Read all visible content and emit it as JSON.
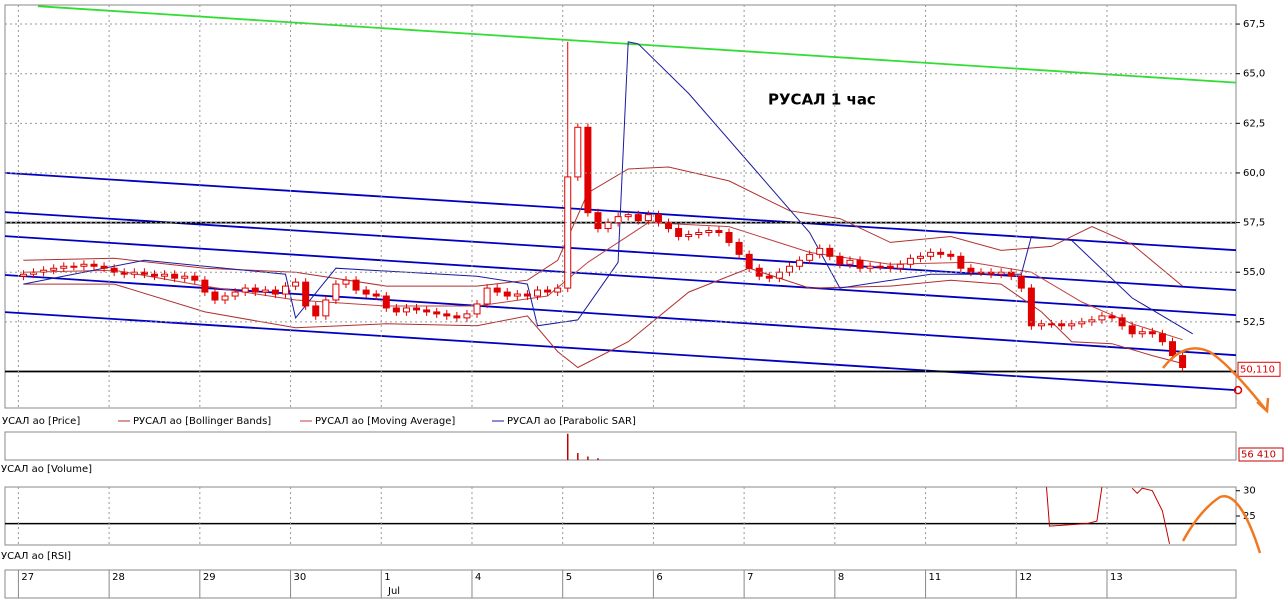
{
  "chart_data": {
    "type": "candlestick",
    "title": "РУСАЛ   1 час",
    "ylim": [
      48.16,
      68.46
    ],
    "yticks": [
      {
        "value": 67.5,
        "label": "67,5"
      },
      {
        "value": 65.0,
        "label": "65,0"
      },
      {
        "value": 62.5,
        "label": "62,5"
      },
      {
        "value": 60.0,
        "label": "60,0"
      },
      {
        "value": 57.5,
        "label": "57,5"
      },
      {
        "value": 55.0,
        "label": "55,0"
      },
      {
        "value": 52.5,
        "label": "52,5"
      }
    ],
    "xlim": [
      -1.83,
      120.3
    ],
    "grid": true,
    "candles": {
      "name": "УСАЛ ао [Price]",
      "up_color": "#ffffff",
      "down_color": "#e00000",
      "open": [
        54.8,
        54.9,
        55.0,
        55.1,
        55.2,
        55.3,
        55.3,
        55.4,
        55.3,
        55.2,
        55.0,
        54.9,
        55.0,
        54.9,
        54.8,
        54.9,
        54.7,
        54.8,
        54.6,
        54.0,
        53.6,
        53.8,
        54.0,
        54.2,
        54.0,
        54.1,
        53.9,
        54.3,
        54.5,
        53.3,
        52.8,
        53.6,
        54.4,
        54.6,
        54.1,
        53.9,
        53.8,
        53.2,
        53.0,
        53.2,
        53.1,
        53.0,
        52.9,
        52.8,
        52.7,
        52.9,
        53.4,
        54.2,
        54.0,
        53.8,
        53.9,
        53.8,
        54.1,
        54.0,
        54.2,
        59.8,
        62.3,
        58.0,
        57.2,
        57.5,
        57.8,
        57.9,
        57.6,
        57.9,
        57.5,
        57.2,
        56.8,
        56.9,
        57.0,
        57.1,
        57.0,
        56.5,
        55.9,
        55.2,
        54.8,
        54.7,
        55.0,
        55.3,
        55.6,
        55.9,
        56.2,
        55.8,
        55.4,
        55.6,
        55.2,
        55.3,
        55.3,
        55.2,
        55.4,
        55.7,
        55.8,
        56.0,
        55.9,
        55.8,
        55.2,
        55.0,
        55.0,
        54.9,
        55.0,
        54.8,
        54.2,
        52.3,
        52.4,
        52.4,
        52.3,
        52.4,
        52.5,
        52.6,
        52.8,
        52.7,
        52.3,
        51.9,
        52.0,
        51.9,
        51.5,
        50.8
      ],
      "high": [
        55.1,
        55.2,
        55.3,
        55.4,
        55.5,
        55.5,
        55.6,
        55.6,
        55.5,
        55.4,
        55.2,
        55.2,
        55.2,
        55.1,
        55.1,
        55.1,
        55.0,
        55.0,
        54.8,
        54.2,
        54.0,
        54.2,
        54.4,
        54.4,
        54.3,
        54.3,
        54.5,
        54.7,
        54.7,
        53.5,
        53.8,
        54.6,
        54.8,
        54.8,
        54.3,
        54.1,
        54.0,
        53.4,
        53.4,
        53.4,
        53.3,
        53.2,
        53.1,
        53.0,
        53.1,
        53.6,
        54.4,
        54.4,
        54.2,
        54.1,
        54.1,
        54.3,
        54.3,
        54.4,
        66.6,
        62.5,
        62.5,
        58.2,
        57.7,
        58.0,
        58.1,
        58.1,
        58.1,
        58.1,
        57.7,
        57.4,
        57.1,
        57.2,
        57.3,
        57.3,
        57.2,
        56.7,
        56.1,
        55.4,
        55.0,
        55.2,
        55.5,
        55.8,
        56.1,
        56.4,
        56.4,
        56.0,
        55.8,
        55.8,
        55.5,
        55.5,
        55.5,
        55.6,
        55.9,
        56.0,
        56.2,
        56.2,
        56.1,
        56.0,
        55.4,
        55.2,
        55.2,
        55.2,
        55.2,
        55.0,
        54.4,
        52.6,
        52.6,
        52.6,
        52.6,
        52.7,
        52.8,
        53.0,
        53.0,
        52.9,
        52.5,
        52.2,
        52.2,
        52.1,
        51.7,
        51.0
      ],
      "low": [
        54.6,
        54.7,
        54.8,
        54.9,
        55.0,
        55.1,
        55.1,
        55.1,
        55.0,
        54.8,
        54.7,
        54.7,
        54.7,
        54.6,
        54.6,
        54.5,
        54.5,
        54.4,
        53.8,
        53.4,
        53.4,
        53.6,
        53.8,
        53.8,
        53.8,
        53.7,
        53.7,
        54.1,
        53.1,
        52.6,
        52.6,
        53.4,
        54.2,
        53.9,
        53.7,
        53.6,
        53.0,
        52.8,
        52.8,
        52.9,
        52.8,
        52.7,
        52.6,
        52.5,
        52.5,
        52.7,
        53.2,
        53.8,
        53.6,
        53.6,
        53.6,
        53.6,
        53.8,
        53.8,
        54.0,
        59.6,
        57.8,
        57.0,
        57.0,
        57.3,
        57.6,
        57.4,
        57.4,
        57.3,
        57.0,
        56.6,
        56.6,
        56.7,
        56.8,
        56.8,
        56.3,
        55.7,
        55.0,
        54.6,
        54.5,
        54.5,
        54.8,
        55.1,
        55.4,
        55.7,
        55.6,
        55.2,
        55.2,
        55.0,
        55.0,
        55.1,
        55.0,
        55.0,
        55.2,
        55.5,
        55.6,
        55.7,
        55.6,
        55.0,
        54.8,
        54.8,
        54.7,
        54.7,
        54.6,
        54.0,
        52.1,
        52.1,
        52.2,
        52.1,
        52.1,
        52.2,
        52.3,
        52.4,
        52.5,
        52.1,
        51.7,
        51.7,
        51.7,
        51.3,
        50.6,
        50.0
      ],
      "close": [
        54.9,
        55.0,
        55.1,
        55.2,
        55.3,
        55.3,
        55.4,
        55.3,
        55.2,
        55.0,
        54.9,
        55.0,
        54.9,
        54.8,
        54.9,
        54.7,
        54.8,
        54.6,
        54.0,
        53.6,
        53.8,
        54.0,
        54.2,
        54.0,
        54.1,
        53.9,
        54.3,
        54.5,
        53.3,
        52.8,
        53.6,
        54.4,
        54.6,
        54.1,
        53.9,
        53.8,
        53.2,
        53.0,
        53.2,
        53.1,
        53.0,
        52.9,
        52.8,
        52.7,
        52.9,
        53.4,
        54.2,
        54.0,
        53.8,
        53.9,
        53.8,
        54.1,
        54.0,
        54.2,
        59.8,
        62.3,
        58.0,
        57.2,
        57.5,
        57.8,
        57.9,
        57.6,
        57.9,
        57.5,
        57.2,
        56.8,
        56.9,
        57.0,
        57.1,
        57.0,
        56.5,
        55.9,
        55.2,
        54.8,
        54.7,
        55.0,
        55.3,
        55.6,
        55.9,
        56.2,
        55.8,
        55.4,
        55.6,
        55.2,
        55.3,
        55.3,
        55.2,
        55.4,
        55.7,
        55.8,
        56.0,
        55.9,
        55.8,
        55.2,
        55.0,
        55.0,
        54.9,
        55.0,
        54.8,
        54.2,
        52.3,
        52.4,
        52.4,
        52.3,
        52.4,
        52.5,
        52.6,
        52.8,
        52.7,
        52.3,
        51.9,
        52.0,
        51.9,
        51.5,
        50.8,
        50.2
      ]
    },
    "indicators": [
      {
        "name": "РУСАЛ ао [Bollinger Bands]",
        "color": "#b03030",
        "lines": [
          {
            "x": [
              0,
              9,
              18,
              27,
              36,
              45,
              50,
              53,
              56,
              60,
              64,
              70,
              76,
              81,
              86,
              92,
              97,
              102,
              106,
              110,
              115
            ],
            "values": [
              55.6,
              55.7,
              55.2,
              55.0,
              54.3,
              54.3,
              54.6,
              55.6,
              59.0,
              60.2,
              60.3,
              59.6,
              58.1,
              57.7,
              56.5,
              56.8,
              56.1,
              56.3,
              57.3,
              56.4,
              54.3
            ]
          },
          {
            "x": [
              0,
              9,
              18,
              27,
              36,
              45,
              50,
              53,
              55,
              60,
              66,
              72,
              78,
              86,
              92,
              97,
              101,
              104,
              108,
              112,
              115
            ],
            "values": [
              54.4,
              54.4,
              53.0,
              52.2,
              52.4,
              52.3,
              52.8,
              51.0,
              50.2,
              51.5,
              54.0,
              55.2,
              54.2,
              54.3,
              54.6,
              54.4,
              53.0,
              51.5,
              51.4,
              50.8,
              50.4
            ]
          }
        ]
      },
      {
        "name": "РУСАЛ ао [Moving Average]",
        "color": "#c04040",
        "lines": [
          {
            "x": [
              0,
              9,
              18,
              27,
              36,
              45,
              52,
              56,
              62,
              70,
              78,
              86,
              94,
              100,
              105,
              110,
              115
            ],
            "values": [
              55.0,
              55.1,
              54.3,
              53.6,
              53.3,
              53.3,
              53.8,
              55.5,
              57.5,
              57.3,
              56.0,
              55.4,
              55.5,
              55.0,
              53.5,
              52.4,
              51.6
            ]
          }
        ]
      },
      {
        "name": "РУСАЛ ао [Parabolic SAR]",
        "color": "#1a1aa0",
        "lines": [
          {
            "x": [
              0,
              12,
              26,
              27,
              31,
              45,
              50,
              51,
              55,
              59,
              60,
              61,
              66,
              72,
              78,
              81,
              90,
              99,
              100,
              104,
              110,
              116
            ],
            "values": [
              54.4,
              55.6,
              54.9,
              52.7,
              55.2,
              54.8,
              54.4,
              52.3,
              52.6,
              55.5,
              66.6,
              66.5,
              64.0,
              60.5,
              57.0,
              54.2,
              54.9,
              54.9,
              56.8,
              56.6,
              53.7,
              51.9
            ]
          }
        ]
      }
    ],
    "trendlines": [
      {
        "color": "#33dd33",
        "x": [
          1.43,
          120.3
        ],
        "values": [
          68.4,
          64.55
        ]
      },
      {
        "color": "#0000c0",
        "x": [
          -1.83,
          120.3
        ],
        "values": [
          60.0,
          56.11
        ]
      },
      {
        "color": "#0000c0",
        "x": [
          -1.83,
          120.3
        ],
        "values": [
          58.03,
          54.1
        ]
      },
      {
        "color": "#0000c0",
        "x": [
          -1.83,
          120.3
        ],
        "values": [
          56.82,
          52.84
        ]
      },
      {
        "color": "#0000c0",
        "x": [
          -1.83,
          120.3
        ],
        "values": [
          54.86,
          50.82
        ]
      },
      {
        "color": "#0000c0",
        "x": [
          -1.83,
          120.3
        ],
        "values": [
          52.99,
          49.06
        ]
      },
      {
        "color": "#000000",
        "x": [
          -1.83,
          120.3
        ],
        "values": [
          57.5,
          57.5
        ]
      },
      {
        "color": "#000000",
        "x": [
          -1.83,
          120.3
        ],
        "values": [
          50.0,
          50.0
        ]
      }
    ],
    "last_price": {
      "value": 50.11,
      "label": "50,110",
      "color": "#e00000"
    },
    "volume": {
      "name": "УСАЛ ао [Volume]",
      "color": "#c00000",
      "ylim": [
        0,
        160000
      ],
      "x": [
        54,
        55,
        56,
        57
      ],
      "values": [
        150000,
        40000,
        20000,
        10000
      ],
      "last": {
        "value": 56410,
        "label": "56 410"
      }
    },
    "rsi": {
      "name": "УСАЛ ао [RSI]",
      "color": "#c00000",
      "ylim": [
        19.26,
        30.74
      ],
      "yticks": [
        30,
        25
      ],
      "level": 23.5,
      "x": [
        101.5,
        101.8,
        105.5,
        106.5,
        107,
        108,
        110,
        110.5,
        111,
        112,
        113,
        113.7
      ],
      "values": [
        30.7,
        23,
        23.5,
        24,
        30.7,
        null,
        30.5,
        29.5,
        30.5,
        30,
        26,
        19.5
      ]
    },
    "dates": [
      "27",
      "28",
      "29",
      "30",
      "1",
      "4",
      "5",
      "6",
      "7",
      "8",
      "11",
      "12",
      "13"
    ],
    "month": "Jul"
  }
}
